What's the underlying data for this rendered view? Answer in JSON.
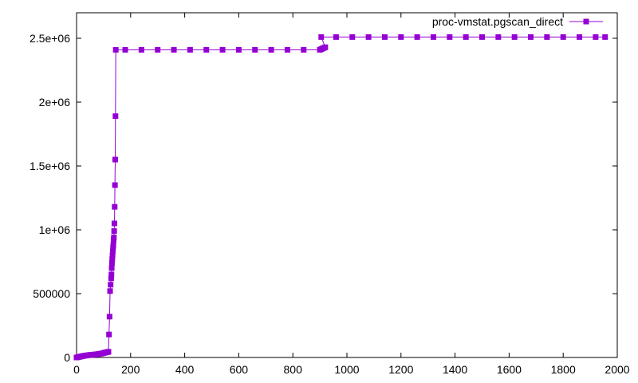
{
  "chart_data": {
    "type": "line",
    "title": "",
    "xlabel": "",
    "ylabel": "",
    "xlim": [
      0,
      2000
    ],
    "ylim": [
      0,
      2700000
    ],
    "xticks": [
      {
        "value": 0,
        "label": "0"
      },
      {
        "value": 200,
        "label": "200"
      },
      {
        "value": 400,
        "label": "400"
      },
      {
        "value": 600,
        "label": "600"
      },
      {
        "value": 800,
        "label": "800"
      },
      {
        "value": 1000,
        "label": "1000"
      },
      {
        "value": 1200,
        "label": "1200"
      },
      {
        "value": 1400,
        "label": "1400"
      },
      {
        "value": 1600,
        "label": "1600"
      },
      {
        "value": 1800,
        "label": "1800"
      },
      {
        "value": 2000,
        "label": "2000"
      }
    ],
    "yticks": [
      {
        "value": 0,
        "label": "0"
      },
      {
        "value": 500000,
        "label": "500000"
      },
      {
        "value": 1000000,
        "label": "1e+06"
      },
      {
        "value": 1500000,
        "label": "1.5e+06"
      },
      {
        "value": 2000000,
        "label": "2e+06"
      },
      {
        "value": 2500000,
        "label": "2.5e+06"
      }
    ],
    "grid": false,
    "legend_position": "top-right",
    "series": [
      {
        "name": "proc-vmstat.pgscan_direct",
        "color": "#9400d3",
        "marker": "filled-square",
        "points": [
          [
            0,
            0
          ],
          [
            5,
            2000
          ],
          [
            10,
            5000
          ],
          [
            15,
            7000
          ],
          [
            20,
            10000
          ],
          [
            25,
            12000
          ],
          [
            30,
            14000
          ],
          [
            35,
            15000
          ],
          [
            40,
            17000
          ],
          [
            45,
            18000
          ],
          [
            50,
            20000
          ],
          [
            55,
            21000
          ],
          [
            60,
            22000
          ],
          [
            65,
            23000
          ],
          [
            70,
            24000
          ],
          [
            75,
            25000
          ],
          [
            80,
            27000
          ],
          [
            85,
            28000
          ],
          [
            90,
            30000
          ],
          [
            95,
            32000
          ],
          [
            100,
            35000
          ],
          [
            105,
            38000
          ],
          [
            110,
            40000
          ],
          [
            115,
            42000
          ],
          [
            118,
            45000
          ],
          [
            120,
            180000
          ],
          [
            122,
            320000
          ],
          [
            124,
            520000
          ],
          [
            126,
            570000
          ],
          [
            128,
            620000
          ],
          [
            129,
            650000
          ],
          [
            130,
            700000
          ],
          [
            131,
            740000
          ],
          [
            132,
            770000
          ],
          [
            133,
            800000
          ],
          [
            134,
            830000
          ],
          [
            135,
            860000
          ],
          [
            136,
            880000
          ],
          [
            137,
            920000
          ],
          [
            138,
            940000
          ],
          [
            139,
            990000
          ],
          [
            140,
            1050000
          ],
          [
            141,
            1180000
          ],
          [
            142,
            1350000
          ],
          [
            143,
            1550000
          ],
          [
            144,
            1890000
          ],
          [
            145,
            2410000
          ],
          [
            180,
            2410000
          ],
          [
            240,
            2410000
          ],
          [
            300,
            2410000
          ],
          [
            360,
            2410000
          ],
          [
            420,
            2410000
          ],
          [
            480,
            2410000
          ],
          [
            540,
            2410000
          ],
          [
            600,
            2410000
          ],
          [
            660,
            2410000
          ],
          [
            720,
            2410000
          ],
          [
            780,
            2410000
          ],
          [
            840,
            2410000
          ],
          [
            900,
            2410000
          ],
          [
            905,
            2415000
          ],
          [
            910,
            2420000
          ],
          [
            915,
            2425000
          ],
          [
            920,
            2430000
          ],
          [
            905,
            2510000
          ],
          [
            960,
            2510000
          ],
          [
            1020,
            2510000
          ],
          [
            1080,
            2510000
          ],
          [
            1140,
            2510000
          ],
          [
            1200,
            2510000
          ],
          [
            1260,
            2510000
          ],
          [
            1320,
            2510000
          ],
          [
            1380,
            2510000
          ],
          [
            1440,
            2510000
          ],
          [
            1500,
            2510000
          ],
          [
            1560,
            2510000
          ],
          [
            1620,
            2510000
          ],
          [
            1680,
            2510000
          ],
          [
            1740,
            2510000
          ],
          [
            1800,
            2510000
          ],
          [
            1860,
            2510000
          ],
          [
            1920,
            2510000
          ],
          [
            1955,
            2510000
          ]
        ]
      }
    ]
  }
}
